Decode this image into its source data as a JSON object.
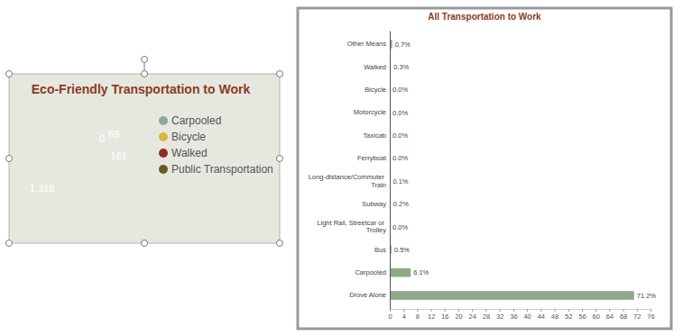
{
  "chart_data": [
    {
      "type": "pie",
      "title": "Eco-Friendly Transportation to Work",
      "categories": [
        "Carpooled",
        "Bicycle",
        "Walked",
        "Public Transportation"
      ],
      "values": [
        1318,
        0,
        69,
        161
      ],
      "value_labels": [
        "1,318",
        "0",
        "69",
        "161"
      ],
      "colors": [
        "#8fa89b",
        "#d8b83c",
        "#8c2f22",
        "#6b5a1f"
      ],
      "data_labels": true,
      "legend": "right"
    },
    {
      "type": "bar",
      "title": "All Transportation to Work",
      "orientation": "horizontal",
      "categories": [
        "Other Means",
        "Walked",
        "Bicycle",
        "Motorcycle",
        "Taxicab",
        "Ferryboat",
        "Long-distance/Commuter Train",
        "Subway",
        "Light Rail, Streetcar or Trolley",
        "Bus",
        "Carpooled",
        "Drove Alone"
      ],
      "values": [
        0.7,
        0.3,
        0.0,
        0.0,
        0.0,
        0.0,
        0.1,
        0.2,
        0.0,
        0.5,
        6.1,
        71.2
      ],
      "value_labels": [
        "0.7%",
        "0.3%",
        "0.0%",
        "0.0%",
        "0.0%",
        "0.0%",
        "0.1%",
        "0.2%",
        "0.0%",
        "0.5%",
        "6.1%",
        "71.2%"
      ],
      "color": "#8fa889",
      "xlim": [
        0,
        76
      ],
      "xticks": [
        0,
        4,
        8,
        12,
        16,
        20,
        24,
        28,
        32,
        36,
        40,
        44,
        48,
        52,
        56,
        60,
        64,
        68,
        72,
        76
      ],
      "data_labels": true
    }
  ]
}
